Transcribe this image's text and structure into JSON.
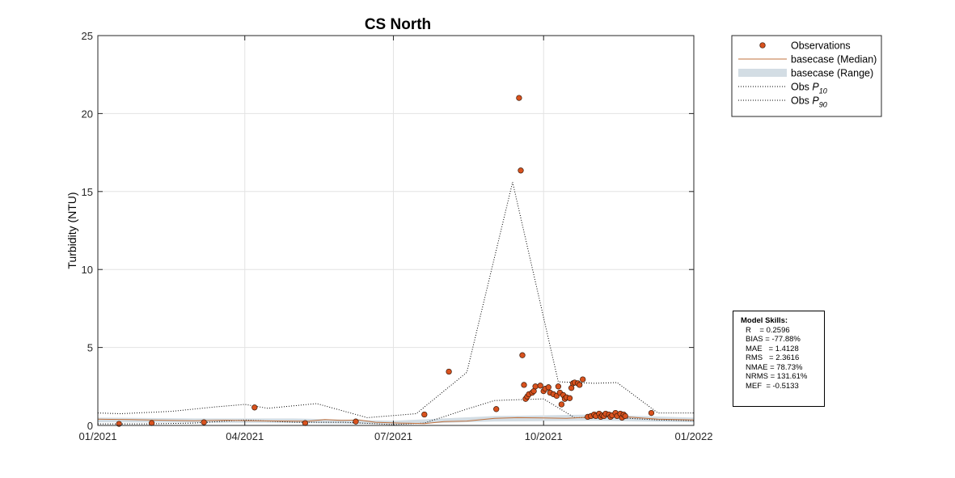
{
  "chart_data": {
    "type": "scatter",
    "title": "CS North",
    "xlabel": "",
    "ylabel": "Turbidity (NTU)",
    "xlim": [
      "2021-01-01",
      "2022-01-01"
    ],
    "ylim": [
      0,
      25
    ],
    "xticks": [
      "01/2021",
      "04/2021",
      "07/2021",
      "10/2021",
      "01/2022"
    ],
    "yticks": [
      0,
      5,
      10,
      15,
      20,
      25
    ],
    "grid": true,
    "legend_position": "outside-top-right",
    "legend": [
      {
        "label": "Observations",
        "kind": "marker"
      },
      {
        "label": "basecase (Median)",
        "kind": "line"
      },
      {
        "label": "basecase (Range)",
        "kind": "patch"
      },
      {
        "label": "Obs P",
        "sub": "10",
        "kind": "dotted"
      },
      {
        "label": "Obs P",
        "sub": "90",
        "kind": "dotted"
      }
    ],
    "colors": {
      "observations": "#d9521e",
      "median": "#c0703c",
      "range": "#d3dde4",
      "percentile": "#000000"
    },
    "series": [
      {
        "name": "Observations",
        "points": [
          [
            "2021-01-14",
            0.1
          ],
          [
            "2021-02-03",
            0.15
          ],
          [
            "2021-03-07",
            0.2
          ],
          [
            "2021-04-07",
            1.15
          ],
          [
            "2021-05-08",
            0.15
          ],
          [
            "2021-06-08",
            0.25
          ],
          [
            "2021-07-20",
            0.7
          ],
          [
            "2021-08-04",
            3.45
          ],
          [
            "2021-09-02",
            1.05
          ],
          [
            "2021-09-16",
            21.0
          ],
          [
            "2021-09-17",
            16.35
          ],
          [
            "2021-09-18",
            4.5
          ],
          [
            "2021-09-19",
            2.6
          ],
          [
            "2021-09-20",
            1.7
          ],
          [
            "2021-09-21",
            1.85
          ],
          [
            "2021-09-22",
            2.0
          ],
          [
            "2021-09-24",
            2.1
          ],
          [
            "2021-09-25",
            2.2
          ],
          [
            "2021-09-26",
            2.5
          ],
          [
            "2021-09-29",
            2.55
          ],
          [
            "2021-10-01",
            2.2
          ],
          [
            "2021-10-02",
            2.35
          ],
          [
            "2021-10-04",
            2.45
          ],
          [
            "2021-10-05",
            2.1
          ],
          [
            "2021-10-07",
            2.0
          ],
          [
            "2021-10-09",
            1.9
          ],
          [
            "2021-10-10",
            2.5
          ],
          [
            "2021-10-11",
            2.1
          ],
          [
            "2021-10-12",
            1.35
          ],
          [
            "2021-10-13",
            1.95
          ],
          [
            "2021-10-14",
            1.7
          ],
          [
            "2021-10-15",
            1.8
          ],
          [
            "2021-10-17",
            1.75
          ],
          [
            "2021-10-18",
            2.4
          ],
          [
            "2021-10-19",
            2.7
          ],
          [
            "2021-10-20",
            2.75
          ],
          [
            "2021-10-22",
            2.7
          ],
          [
            "2021-10-23",
            2.6
          ],
          [
            "2021-10-25",
            2.95
          ],
          [
            "2021-10-28",
            0.55
          ],
          [
            "2021-10-30",
            0.6
          ],
          [
            "2021-11-01",
            0.7
          ],
          [
            "2021-11-02",
            0.6
          ],
          [
            "2021-11-04",
            0.75
          ],
          [
            "2021-11-05",
            0.55
          ],
          [
            "2021-11-06",
            0.65
          ],
          [
            "2021-11-07",
            0.6
          ],
          [
            "2021-11-08",
            0.75
          ],
          [
            "2021-11-10",
            0.7
          ],
          [
            "2021-11-11",
            0.55
          ],
          [
            "2021-11-12",
            0.65
          ],
          [
            "2021-11-14",
            0.8
          ],
          [
            "2021-11-15",
            0.6
          ],
          [
            "2021-11-17",
            0.75
          ],
          [
            "2021-11-18",
            0.5
          ],
          [
            "2021-11-19",
            0.7
          ],
          [
            "2021-11-20",
            0.6
          ],
          [
            "2021-12-06",
            0.8
          ]
        ]
      },
      {
        "name": "basecase (Median)",
        "points": [
          [
            "2021-01-01",
            0.4
          ],
          [
            "2021-01-20",
            0.38
          ],
          [
            "2021-02-10",
            0.33
          ],
          [
            "2021-03-01",
            0.3
          ],
          [
            "2021-03-20",
            0.33
          ],
          [
            "2021-04-05",
            0.3
          ],
          [
            "2021-04-25",
            0.28
          ],
          [
            "2021-05-10",
            0.27
          ],
          [
            "2021-05-20",
            0.38
          ],
          [
            "2021-05-30",
            0.32
          ],
          [
            "2021-06-10",
            0.35
          ],
          [
            "2021-06-20",
            0.2
          ],
          [
            "2021-07-05",
            0.15
          ],
          [
            "2021-07-20",
            0.12
          ],
          [
            "2021-08-01",
            0.25
          ],
          [
            "2021-08-15",
            0.28
          ],
          [
            "2021-09-01",
            0.45
          ],
          [
            "2021-09-15",
            0.5
          ],
          [
            "2021-10-01",
            0.48
          ],
          [
            "2021-10-15",
            0.45
          ],
          [
            "2021-11-01",
            0.55
          ],
          [
            "2021-11-20",
            0.55
          ],
          [
            "2021-12-10",
            0.4
          ],
          [
            "2022-01-01",
            0.35
          ]
        ]
      },
      {
        "name": "basecase (Range)",
        "lower": [
          [
            "2021-01-01",
            0.2
          ],
          [
            "2021-03-01",
            0.18
          ],
          [
            "2021-05-01",
            0.16
          ],
          [
            "2021-07-01",
            0.08
          ],
          [
            "2021-09-01",
            0.25
          ],
          [
            "2021-11-01",
            0.3
          ],
          [
            "2022-01-01",
            0.2
          ]
        ],
        "upper": [
          [
            "2021-01-01",
            0.5
          ],
          [
            "2021-03-01",
            0.45
          ],
          [
            "2021-05-01",
            0.45
          ],
          [
            "2021-07-01",
            0.3
          ],
          [
            "2021-09-01",
            0.6
          ],
          [
            "2021-11-01",
            0.7
          ],
          [
            "2022-01-01",
            0.5
          ]
        ]
      },
      {
        "name": "Obs P10",
        "points": [
          [
            "2021-01-01",
            0.1
          ],
          [
            "2021-02-01",
            0.1
          ],
          [
            "2021-03-01",
            0.15
          ],
          [
            "2021-04-01",
            0.35
          ],
          [
            "2021-05-01",
            0.2
          ],
          [
            "2021-06-01",
            0.2
          ],
          [
            "2021-07-01",
            0.05
          ],
          [
            "2021-07-20",
            0.15
          ],
          [
            "2021-08-15",
            1.05
          ],
          [
            "2021-09-01",
            1.6
          ],
          [
            "2021-09-15",
            1.65
          ],
          [
            "2021-10-01",
            1.7
          ],
          [
            "2021-10-20",
            0.5
          ],
          [
            "2021-11-15",
            0.5
          ],
          [
            "2021-12-10",
            0.35
          ],
          [
            "2022-01-01",
            0.3
          ]
        ]
      },
      {
        "name": "Obs P90",
        "points": [
          [
            "2021-01-01",
            0.8
          ],
          [
            "2021-01-15",
            0.75
          ],
          [
            "2021-02-15",
            0.9
          ],
          [
            "2021-03-15",
            1.2
          ],
          [
            "2021-04-01",
            1.35
          ],
          [
            "2021-04-15",
            1.1
          ],
          [
            "2021-05-15",
            1.4
          ],
          [
            "2021-06-15",
            0.5
          ],
          [
            "2021-07-15",
            0.75
          ],
          [
            "2021-08-15",
            3.4
          ],
          [
            "2021-09-12",
            15.6
          ],
          [
            "2021-10-10",
            2.8
          ],
          [
            "2021-11-01",
            2.7
          ],
          [
            "2021-11-15",
            2.75
          ],
          [
            "2021-12-10",
            0.8
          ],
          [
            "2022-01-01",
            0.8
          ]
        ]
      }
    ]
  },
  "model_skills": {
    "title": "Model Skills:",
    "lines": [
      "R    = 0.2596",
      "BIAS = -77.88%",
      "MAE   = 1.4128",
      "RMS   = 2.3616",
      "NMAE = 78.73%",
      "NRMS = 131.61%",
      "MEF  = -0.5133"
    ]
  }
}
